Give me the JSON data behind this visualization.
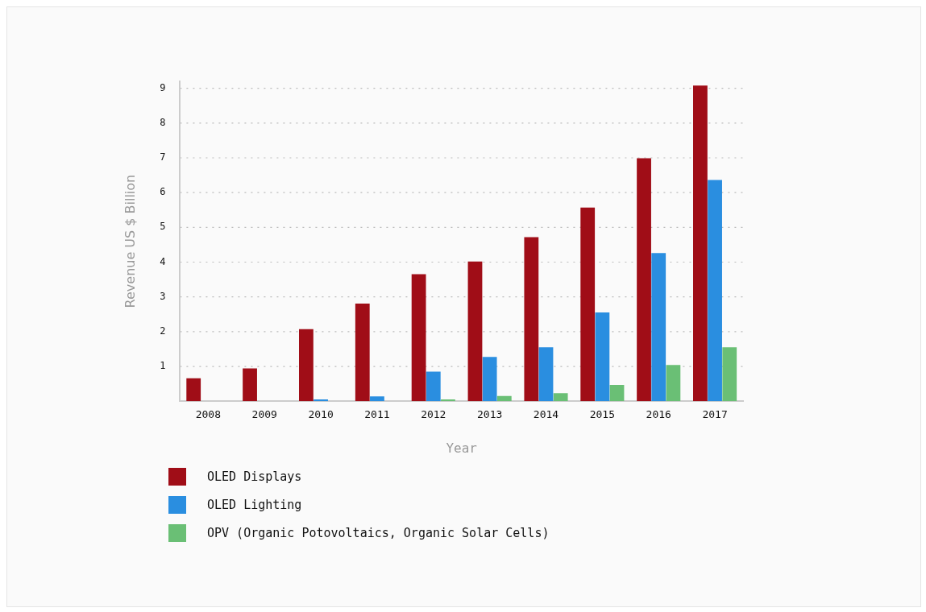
{
  "chart_data": {
    "type": "bar",
    "xlabel": "Year",
    "ylabel": "Revenue US $ Billion",
    "categories": [
      "2008",
      "2009",
      "2010",
      "2011",
      "2012",
      "2013",
      "2014",
      "2015",
      "2016",
      "2017"
    ],
    "series": [
      {
        "name": "OLED Displays",
        "color": "#a00d17",
        "values": [
          0.66,
          0.94,
          2.07,
          2.81,
          3.65,
          4.02,
          4.72,
          5.57,
          6.99,
          9.08
        ]
      },
      {
        "name": "OLED Lighting",
        "color": "#2a8ee0",
        "values": [
          0,
          0,
          0.05,
          0.14,
          0.85,
          1.27,
          1.55,
          2.55,
          4.26,
          6.36
        ]
      },
      {
        "name": "OPV (Organic Potovoltaics, Organic Solar Cells)",
        "color": "#6abf75",
        "values": [
          0,
          0,
          0,
          0,
          0.05,
          0.15,
          0.23,
          0.47,
          1.04,
          1.55
        ]
      }
    ],
    "ylim": [
      0,
      9.2
    ],
    "yticks": [
      1,
      2,
      3,
      4,
      5,
      6,
      7,
      8,
      9
    ],
    "grid": "y",
    "legend": "bottom left"
  }
}
